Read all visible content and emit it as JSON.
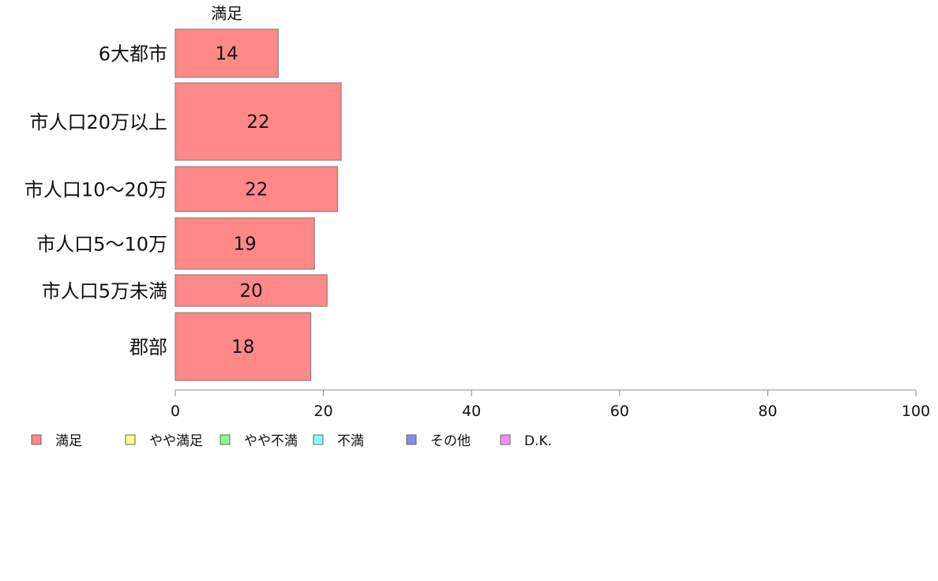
{
  "chart_data": {
    "type": "bar",
    "orientation": "horizontal",
    "stacked": true,
    "categories": [
      "6大都市",
      "市人口20万以上",
      "市人口10〜20万",
      "市人口5〜10万",
      "市人口5万未満",
      "郡部"
    ],
    "series": [
      {
        "name": "満足",
        "values": [
          14,
          22,
          22,
          19,
          20,
          18
        ],
        "color": "#ff8888"
      },
      {
        "name": "やや満足",
        "values": [
          0,
          0,
          0,
          0,
          0,
          0
        ],
        "color": "#ffff88"
      },
      {
        "name": "やや不満",
        "values": [
          0,
          0,
          0,
          0,
          0,
          0
        ],
        "color": "#88ff88"
      },
      {
        "name": "不満",
        "values": [
          0,
          0,
          0,
          0,
          0,
          0
        ],
        "color": "#88ffff"
      },
      {
        "name": "その他",
        "values": [
          0,
          0,
          0,
          0,
          0,
          0
        ],
        "color": "#8888ee"
      },
      {
        "name": "D.K.",
        "values": [
          0,
          0,
          0,
          0,
          0,
          0
        ],
        "color": "#ff88ff"
      }
    ],
    "bar_values": [
      13.9,
      22.4,
      21.9,
      18.8,
      20.5,
      18.3
    ],
    "xlim": [
      0,
      100
    ],
    "xticks": [
      0,
      20,
      40,
      60,
      80,
      100
    ],
    "top_series_label": "満足",
    "legend_position": "bottom-left",
    "grid": false
  }
}
